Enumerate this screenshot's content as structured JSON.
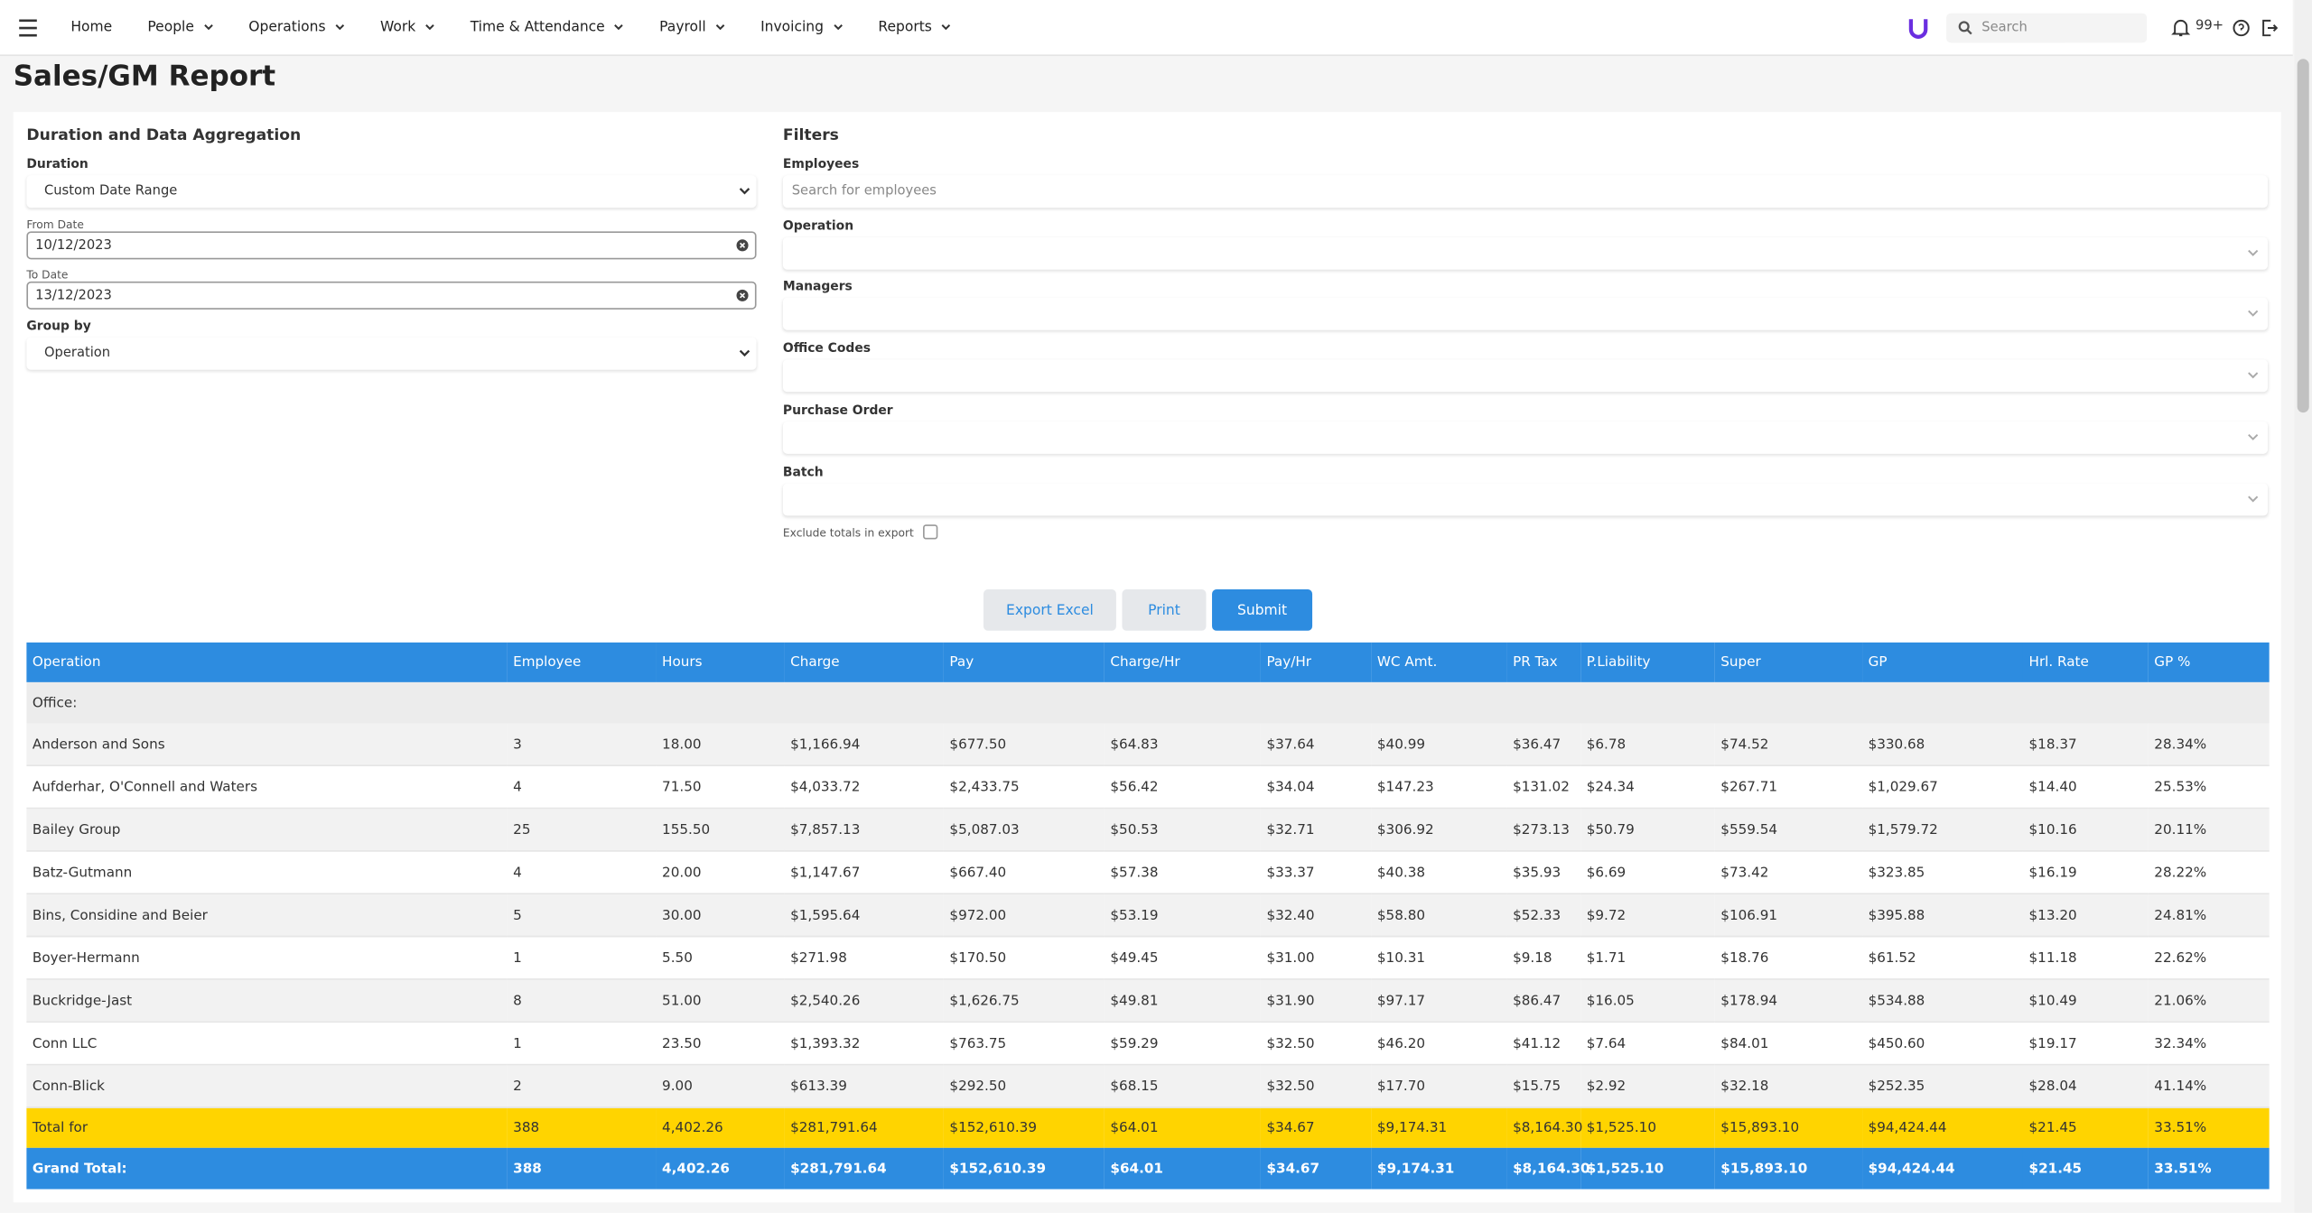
{
  "nav": {
    "items": [
      "Home",
      "People",
      "Operations",
      "Work",
      "Time & Attendance",
      "Payroll",
      "Invoicing",
      "Reports"
    ],
    "search_placeholder": "Search",
    "notification_count": "99+"
  },
  "page_title": "Sales/GM Report",
  "aggregation": {
    "title": "Duration and Data Aggregation",
    "duration_label": "Duration",
    "duration_value": "Custom Date Range",
    "from_label": "From Date",
    "from_value": "10/12/2023",
    "to_label": "To Date",
    "to_value": "13/12/2023",
    "group_label": "Group by",
    "group_value": "Operation"
  },
  "filters": {
    "title": "Filters",
    "fields": [
      {
        "label": "Employees",
        "placeholder": "Search for employees"
      },
      {
        "label": "Operation"
      },
      {
        "label": "Managers"
      },
      {
        "label": "Office Codes"
      },
      {
        "label": "Purchase Order"
      },
      {
        "label": "Batch"
      }
    ],
    "exclude_label": "Exclude totals in export"
  },
  "buttons": [
    "Export Excel",
    "Print",
    "Submit"
  ],
  "table": {
    "columns": [
      "Operation",
      "Employee",
      "Hours",
      "Charge",
      "Pay",
      "Charge/Hr",
      "Pay/Hr",
      "WC Amt.",
      "PR Tax",
      "P.Liability",
      "Super",
      "GP",
      "Hrl. Rate",
      "GP %"
    ],
    "group_label": "Office:",
    "rows": [
      [
        "Anderson and Sons",
        "3",
        "18.00",
        "$1,166.94",
        "$677.50",
        "$64.83",
        "$37.64",
        "$40.99",
        "$36.47",
        "$6.78",
        "$74.52",
        "$330.68",
        "$18.37",
        "28.34%"
      ],
      [
        "Aufderhar, O'Connell and Waters",
        "4",
        "71.50",
        "$4,033.72",
        "$2,433.75",
        "$56.42",
        "$34.04",
        "$147.23",
        "$131.02",
        "$24.34",
        "$267.71",
        "$1,029.67",
        "$14.40",
        "25.53%"
      ],
      [
        "Bailey Group",
        "25",
        "155.50",
        "$7,857.13",
        "$5,087.03",
        "$50.53",
        "$32.71",
        "$306.92",
        "$273.13",
        "$50.79",
        "$559.54",
        "$1,579.72",
        "$10.16",
        "20.11%"
      ],
      [
        "Batz-Gutmann",
        "4",
        "20.00",
        "$1,147.67",
        "$667.40",
        "$57.38",
        "$33.37",
        "$40.38",
        "$35.93",
        "$6.69",
        "$73.42",
        "$323.85",
        "$16.19",
        "28.22%"
      ],
      [
        "Bins, Considine and Beier",
        "5",
        "30.00",
        "$1,595.64",
        "$972.00",
        "$53.19",
        "$32.40",
        "$58.80",
        "$52.33",
        "$9.72",
        "$106.91",
        "$395.88",
        "$13.20",
        "24.81%"
      ],
      [
        "Boyer-Hermann",
        "1",
        "5.50",
        "$271.98",
        "$170.50",
        "$49.45",
        "$31.00",
        "$10.31",
        "$9.18",
        "$1.71",
        "$18.76",
        "$61.52",
        "$11.18",
        "22.62%"
      ],
      [
        "Buckridge-Jast",
        "8",
        "51.00",
        "$2,540.26",
        "$1,626.75",
        "$49.81",
        "$31.90",
        "$97.17",
        "$86.47",
        "$16.05",
        "$178.94",
        "$534.88",
        "$10.49",
        "21.06%"
      ],
      [
        "Conn LLC",
        "1",
        "23.50",
        "$1,393.32",
        "$763.75",
        "$59.29",
        "$32.50",
        "$46.20",
        "$41.12",
        "$7.64",
        "$84.01",
        "$450.60",
        "$19.17",
        "32.34%"
      ],
      [
        "Conn-Blick",
        "2",
        "9.00",
        "$613.39",
        "$292.50",
        "$68.15",
        "$32.50",
        "$17.70",
        "$15.75",
        "$2.92",
        "$32.18",
        "$252.35",
        "$28.04",
        "41.14%"
      ]
    ],
    "total_row": [
      "Total for",
      "388",
      "4,402.26",
      "$281,791.64",
      "$152,610.39",
      "$64.01",
      "$34.67",
      "$9,174.31",
      "$8,164.30",
      "$1,525.10",
      "$15,893.10",
      "$94,424.44",
      "$21.45",
      "33.51%"
    ],
    "grand_total_row": [
      "Grand Total:",
      "388",
      "4,402.26",
      "$281,791.64",
      "$152,610.39",
      "$64.01",
      "$34.67",
      "$9,174.31",
      "$8,164.30",
      "$1,525.10",
      "$15,893.10",
      "$94,424.44",
      "$21.45",
      "33.51%"
    ]
  }
}
